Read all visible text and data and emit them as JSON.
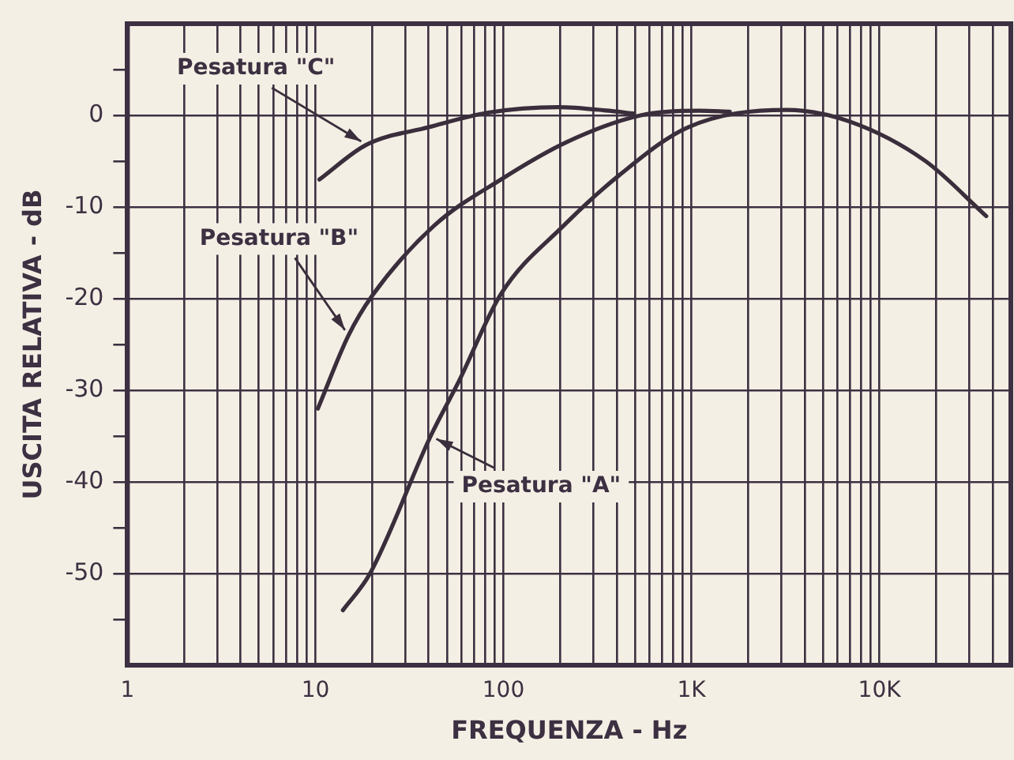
{
  "chart_data": {
    "type": "line",
    "xlabel": "FREQUENZA - Hz",
    "ylabel": "USCITA RELATIVA - dB",
    "log": "x",
    "grid": true,
    "marker": "none",
    "line_style": "solid",
    "xlim": [
      1,
      50000
    ],
    "ylim": [
      -60,
      10
    ],
    "xticks": [
      1,
      {
        "value": 2,
        "label": null
      },
      {
        "value": 3,
        "label": null
      },
      {
        "value": 4,
        "label": null
      },
      {
        "value": 5,
        "label": null
      },
      {
        "value": 6,
        "label": null
      },
      {
        "value": 7,
        "label": null
      },
      {
        "value": 8,
        "label": null
      },
      {
        "value": 9,
        "label": null
      },
      10,
      {
        "value": 20,
        "label": null
      },
      {
        "value": 30,
        "label": null
      },
      {
        "value": 40,
        "label": null
      },
      {
        "value": 50,
        "label": null
      },
      {
        "value": 60,
        "label": null
      },
      {
        "value": 70,
        "label": null
      },
      {
        "value": 80,
        "label": null
      },
      {
        "value": 90,
        "label": null
      },
      100,
      {
        "value": 200,
        "label": null
      },
      {
        "value": 300,
        "label": null
      },
      {
        "value": 400,
        "label": null
      },
      {
        "value": 500,
        "label": null
      },
      {
        "value": 600,
        "label": null
      },
      {
        "value": 700,
        "label": null
      },
      {
        "value": 800,
        "label": null
      },
      {
        "value": 900,
        "label": null
      },
      {
        "value": 1000,
        "label": "1K"
      },
      {
        "value": 2000,
        "label": null
      },
      {
        "value": 3000,
        "label": null
      },
      {
        "value": 4000,
        "label": null
      },
      {
        "value": 5000,
        "label": null
      },
      {
        "value": 6000,
        "label": null
      },
      {
        "value": 7000,
        "label": null
      },
      {
        "value": 8000,
        "label": null
      },
      {
        "value": 9000,
        "label": null
      },
      {
        "value": 10000,
        "label": "10K"
      },
      {
        "value": 20000,
        "label": null
      },
      {
        "value": 30000,
        "label": null
      },
      {
        "value": 40000,
        "label": null
      }
    ],
    "yticks": [
      {
        "value": -55,
        "label": null
      },
      -50,
      {
        "value": -45,
        "label": null
      },
      -40,
      {
        "value": -35,
        "label": null
      },
      -30,
      {
        "value": -25,
        "label": null
      },
      -20,
      {
        "value": -15,
        "label": null
      },
      -10,
      {
        "value": -5,
        "label": null
      },
      0,
      {
        "value": 5,
        "label": null
      }
    ],
    "series": [
      {
        "name": "Pesatura \"A\"",
        "color": "#3a2e3c",
        "x": [
          14,
          19.5,
          41,
          58,
          97,
          210,
          415,
          960,
          3200,
          7000,
          17600,
          37000
        ],
        "values": [
          -54,
          -50,
          -35,
          -29,
          -19.5,
          -12,
          -6.5,
          -1.3,
          0.6,
          -0.7,
          -5,
          -11
        ]
      },
      {
        "name": "Pesatura \"B\"",
        "color": "#3a2e3c",
        "x": [
          10.3,
          15,
          20,
          43,
          97,
          218,
          537,
          1100,
          1600
        ],
        "values": [
          -32,
          -24,
          -19.7,
          -12,
          -7,
          -2.9,
          0,
          0.5,
          0.4
        ]
      },
      {
        "name": "Pesatura \"C\"",
        "color": "#3a2e3c",
        "x": [
          10.5,
          18.7,
          40,
          83,
          195,
          365,
          490
        ],
        "values": [
          -7,
          -3.2,
          -1.3,
          0.3,
          0.9,
          0.5,
          0.2
        ]
      }
    ]
  }
}
